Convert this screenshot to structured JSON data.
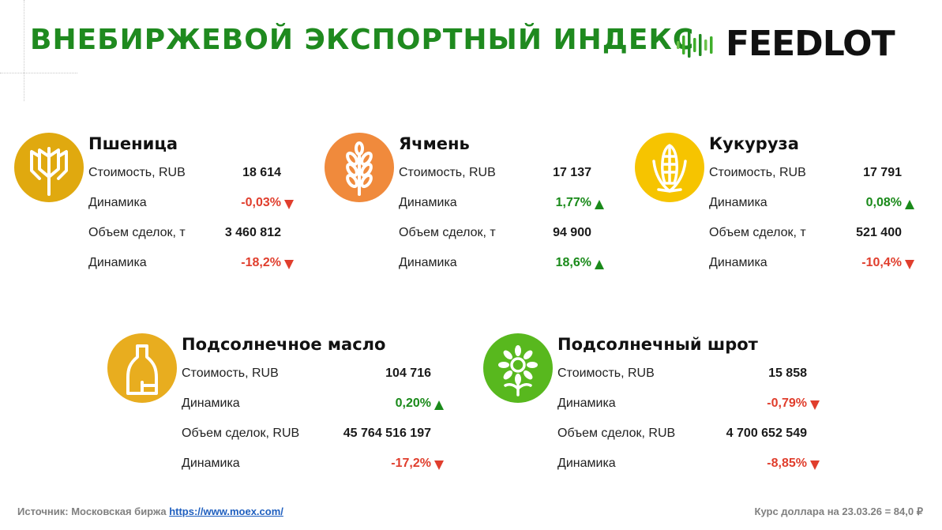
{
  "header": {
    "title": "ВНЕБИРЖЕВОЙ ЭКСПОРТНЫЙ ИНДЕКС",
    "logo_text": "FEEDLOT"
  },
  "colors": {
    "title_green": "#1f8a1f",
    "positive": "#1a8a1a",
    "negative": "#e03e2d",
    "wheat": "#e0a90f",
    "barley": "#f08a3c",
    "corn": "#f6c400",
    "oil": "#e8ad1f",
    "meal": "#58b81e"
  },
  "cards": [
    {
      "title": "Пшеница",
      "icon": "wheat-icon",
      "rows": [
        {
          "label": "Стоимость, RUB",
          "value": "18 614"
        },
        {
          "label": "Динамика",
          "value": "-0,03%",
          "trend": "down"
        },
        {
          "label": "Объем сделок, т",
          "value": "3 460 812"
        },
        {
          "label": "Динамика",
          "value": "-18,2%",
          "trend": "down"
        }
      ]
    },
    {
      "title": "Ячмень",
      "icon": "barley-icon",
      "rows": [
        {
          "label": "Стоимость, RUB",
          "value": "17 137"
        },
        {
          "label": "Динамика",
          "value": "1,77%",
          "trend": "up"
        },
        {
          "label": "Объем сделок, т",
          "value": "94 900"
        },
        {
          "label": "Динамика",
          "value": "18,6%",
          "trend": "up"
        }
      ]
    },
    {
      "title": "Кукуруза",
      "icon": "corn-icon",
      "rows": [
        {
          "label": "Стоимость, RUB",
          "value": "17 791"
        },
        {
          "label": "Динамика",
          "value": "0,08%",
          "trend": "up"
        },
        {
          "label": "Объем сделок, т",
          "value": "521 400"
        },
        {
          "label": "Динамика",
          "value": "-10,4%",
          "trend": "down"
        }
      ]
    },
    {
      "title": "Подсолнечное масло",
      "icon": "oil-bottle-icon",
      "rows": [
        {
          "label": "Стоимость, RUB",
          "value": "104 716"
        },
        {
          "label": "Динамика",
          "value": "0,20%",
          "trend": "up"
        },
        {
          "label": "Объем сделок, RUB",
          "value": "45 764 516 197"
        },
        {
          "label": "Динамика",
          "value": "-17,2%",
          "trend": "down"
        }
      ]
    },
    {
      "title": "Подсолнечный шрот",
      "icon": "sunflower-icon",
      "rows": [
        {
          "label": "Стоимость, RUB",
          "value": "15 858"
        },
        {
          "label": "Динамика",
          "value": "-0,79%",
          "trend": "down"
        },
        {
          "label": "Объем сделок, RUB",
          "value": "4 700 652 549"
        },
        {
          "label": "Динамика",
          "value": "-8,85%",
          "trend": "down"
        }
      ]
    }
  ],
  "footer": {
    "source_label": "Источник: Московская биржа",
    "source_link": "https://www.moex.com/",
    "rate": "Курс доллара на 23.03.26 = 84,0 ₽"
  }
}
